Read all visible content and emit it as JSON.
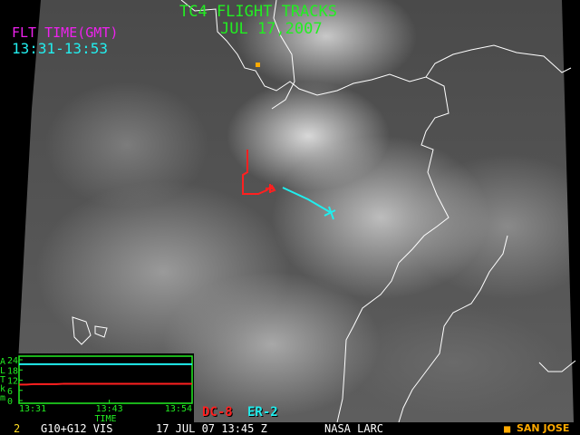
{
  "header": {
    "title": "TC4 FLIGHT TRACKS",
    "date": "JUL 17,2007"
  },
  "flight_time": {
    "label": "FLT TIME(GMT)",
    "range": "13:31-13:53"
  },
  "legend": [
    {
      "name": "DC-8",
      "color": "#ff2020"
    },
    {
      "name": "ER-2",
      "color": "#20eeee"
    }
  ],
  "landmark": {
    "name": "SAN JOSE",
    "color": "#ffaa00",
    "icon": "square-marker-icon"
  },
  "footer": {
    "frame": "2",
    "product": "G10+G12 VIS",
    "timestamp": "17 JUL 07 13:45 Z",
    "source": "NASA LARC"
  },
  "chart_data": {
    "type": "line",
    "ylabel": [
      "A",
      "L",
      "T",
      "k",
      "m"
    ],
    "xlabel": "TIME",
    "x_ticks": [
      "13:31",
      "13:43",
      "13:54"
    ],
    "y_ticks": [
      "24",
      "18",
      "12",
      "6",
      "0"
    ],
    "ylim": [
      0,
      24
    ],
    "xlim": [
      "13:31",
      "13:54"
    ],
    "series": [
      {
        "name": "ER-2",
        "color": "#20eeee",
        "x": [
          "13:31",
          "13:54"
        ],
        "y": [
          21.4,
          21.4
        ]
      },
      {
        "name": "DC-8",
        "color": "#ff2020",
        "x": [
          "13:31",
          "13:32",
          "13:33",
          "13:36",
          "13:37",
          "13:54"
        ],
        "y": [
          9.4,
          9.4,
          9.7,
          9.7,
          9.9,
          9.9
        ]
      }
    ]
  }
}
